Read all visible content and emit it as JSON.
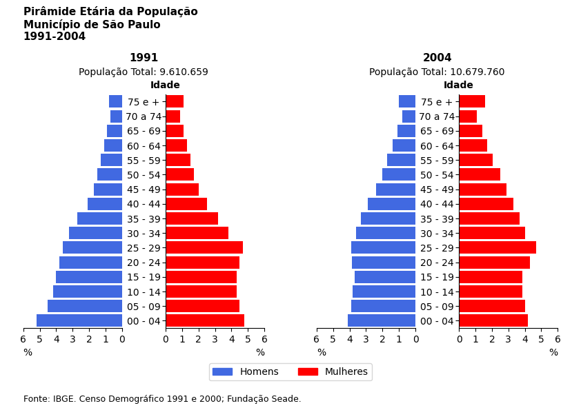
{
  "title": "Pirâmide Etária da População\nMunicípio de São Paulo\n1991-2004",
  "annotations": [
    "Fonte: IBGE. Censo Demográfico 1991 e 2000; Fundação Seade."
  ],
  "chart_data": [
    {
      "type": "bar",
      "orientation": "horizontal",
      "title": "1991",
      "subtitle": "População Total: 9.610.659",
      "ylabel": "Idade",
      "xlabel": "%",
      "categories": [
        "00 - 04",
        "05 - 09",
        "10 - 14",
        "15 - 19",
        "20 - 24",
        "25 - 29",
        "30 - 34",
        "35 - 39",
        "40 - 44",
        "45 - 49",
        "50 - 54",
        "55 - 59",
        "60 - 64",
        "65 - 69",
        "70 a 74",
        "75 e +"
      ],
      "series": [
        {
          "name": "Homens",
          "color": "#4169E1",
          "values": [
            5.2,
            4.5,
            4.2,
            4.0,
            3.8,
            3.6,
            3.2,
            2.7,
            2.1,
            1.7,
            1.5,
            1.3,
            1.1,
            0.9,
            0.7,
            0.8
          ]
        },
        {
          "name": "Mulheres",
          "color": "#FF0000",
          "values": [
            4.8,
            4.5,
            4.3,
            4.3,
            4.5,
            4.7,
            3.8,
            3.2,
            2.5,
            2.0,
            1.7,
            1.5,
            1.3,
            1.1,
            0.9,
            1.1
          ]
        }
      ],
      "xlim": [
        0,
        6
      ],
      "xticks": [
        0,
        1,
        2,
        3,
        4,
        5,
        6
      ],
      "legend": "lower center"
    },
    {
      "type": "bar",
      "orientation": "horizontal",
      "title": "2004",
      "subtitle": "População Total: 10.679.760",
      "ylabel": "Idade",
      "xlabel": "%",
      "categories": [
        "00 - 04",
        "05 - 09",
        "10 - 14",
        "15 - 19",
        "20 - 24",
        "25 - 29",
        "30 - 34",
        "35 - 39",
        "40 - 44",
        "45 - 49",
        "50 - 54",
        "55 - 59",
        "60 - 64",
        "65 - 69",
        "70 a 74",
        "75 e +"
      ],
      "series": [
        {
          "name": "Homens",
          "color": "#4169E1",
          "values": [
            4.1,
            3.9,
            3.8,
            3.7,
            3.85,
            3.9,
            3.6,
            3.3,
            2.9,
            2.4,
            2.0,
            1.7,
            1.4,
            1.1,
            0.8,
            1.0
          ]
        },
        {
          "name": "Mulheres",
          "color": "#FF0000",
          "values": [
            4.2,
            4.0,
            3.85,
            3.85,
            4.3,
            4.7,
            4.0,
            3.7,
            3.3,
            2.9,
            2.5,
            2.05,
            1.7,
            1.4,
            1.1,
            1.6
          ]
        }
      ],
      "xlim": [
        0,
        6
      ],
      "xticks": [
        0,
        1,
        2,
        3,
        4,
        5,
        6
      ]
    }
  ]
}
